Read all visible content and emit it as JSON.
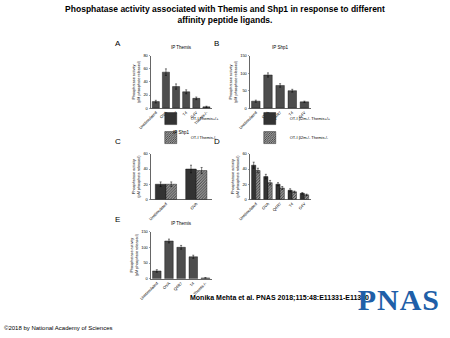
{
  "title": "Phosphatase activity associated with Themis and Shp1 in response to different affinity peptide ligands.",
  "citation": "Monika Mehta et al. PNAS 2018;115:48:E11331-E11340",
  "logo": "PNAS",
  "copyright": "©2018 by National Academy of Sciences",
  "chart_data": [
    {
      "panel": "A",
      "type": "bar",
      "title": "IP Themis",
      "y_label": [
        "Phosphatase activity",
        "(pM phosphate released)"
      ],
      "categories": [
        "Unstimulated",
        "OVA",
        "Q4R7",
        "T4",
        "G4V",
        "Themis-/-"
      ],
      "values": [
        10,
        55,
        33,
        25,
        15,
        2
      ],
      "errors": [
        2,
        5,
        4,
        3,
        2,
        1
      ],
      "color": "#4d4d4d",
      "ylim": [
        0,
        80
      ],
      "yticks": [
        0,
        20,
        40,
        60,
        80
      ]
    },
    {
      "panel": "B",
      "type": "bar",
      "title": "IP Shp1",
      "y_label": [
        "Phosphatase activity",
        "(pM phosphate released)"
      ],
      "categories": [
        "Unstimulated",
        "OVA",
        "Q4R7",
        "T4",
        "G4V"
      ],
      "values": [
        20,
        95,
        65,
        50,
        18
      ],
      "errors": [
        3,
        6,
        5,
        4,
        2
      ],
      "color": "#4d4d4d",
      "ylim": [
        0,
        150
      ],
      "yticks": [
        0,
        50,
        100,
        150
      ]
    },
    {
      "panel": "C",
      "type": "bar",
      "title": "IP Shp1",
      "y_label": [
        "Phosphatase activity",
        "(pM phosphate released)"
      ],
      "categories": [
        "Unstimulated",
        "OVA"
      ],
      "series": [
        {
          "name": "OT-I Themis+/+",
          "color": "#333333",
          "marker": "solid",
          "values": [
            20,
            40
          ],
          "errors": [
            3,
            5
          ]
        },
        {
          "name": "OT-I Themis-/-",
          "color": "#999999",
          "marker": "hatch",
          "values": [
            20,
            38
          ],
          "errors": [
            3,
            4
          ]
        }
      ],
      "legend": "top left",
      "ylim": [
        0,
        60
      ],
      "yticks": [
        0,
        20,
        40,
        60
      ]
    },
    {
      "panel": "D",
      "type": "bar",
      "y_label": [
        "Phosphatase activity",
        "(pM phosphate released)"
      ],
      "categories": [
        "Unstimulated",
        "OVA",
        "Q4R7",
        "T4",
        "G4V"
      ],
      "series": [
        {
          "name": "OT-I β2m-/- Themis+/+",
          "color": "#333333",
          "marker": "solid",
          "values": [
            45,
            30,
            20,
            12,
            8
          ],
          "errors": [
            4,
            3,
            2,
            2,
            1
          ]
        },
        {
          "name": "OT-I β2m-/- Themis-/-",
          "color": "#999999",
          "marker": "hatch",
          "values": [
            38,
            22,
            15,
            10,
            6
          ],
          "errors": [
            3,
            3,
            2,
            1,
            1
          ]
        }
      ],
      "legend": "top left",
      "ylim": [
        0,
        60
      ],
      "yticks": [
        0,
        20,
        40,
        60
      ]
    },
    {
      "panel": "E",
      "type": "bar",
      "title": "IP Themis",
      "y_label": [
        "Phosphatase activity",
        "(pM phosphate released)"
      ],
      "categories": [
        "Unstimulated",
        "OVA",
        "Q4R7",
        "T4",
        "Themis-/-"
      ],
      "values": [
        25,
        120,
        100,
        70,
        3
      ],
      "errors": [
        4,
        6,
        6,
        5,
        1
      ],
      "color": "#4d4d4d",
      "ylim": [
        0,
        150
      ],
      "yticks": [
        0,
        50,
        100,
        150
      ]
    }
  ]
}
